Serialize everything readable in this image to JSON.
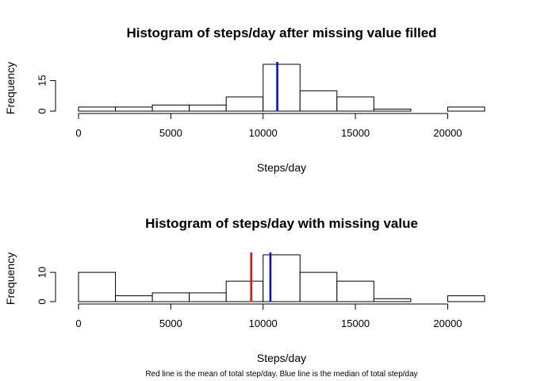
{
  "colors": {
    "bar_fill": "#ffffff",
    "bar_stroke": "#000000",
    "mean_line": "#ff0000",
    "median_line": "#0000ff"
  },
  "footnote": "Red line is the mean of total step/day. Blue line is the median of total step/day",
  "chart_data": [
    {
      "type": "bar",
      "title": "Histogram of steps/day after missing value filled",
      "xlabel": "Steps/day",
      "ylabel": "Frequency",
      "bin_edges": [
        0,
        2000,
        4000,
        6000,
        8000,
        10000,
        12000,
        14000,
        16000,
        18000,
        20000,
        22000
      ],
      "values": [
        2,
        2,
        3,
        3,
        7,
        23,
        10,
        7,
        1,
        0,
        2
      ],
      "xticks": [
        0,
        5000,
        10000,
        15000,
        20000
      ],
      "xtick_labels": [
        "0",
        "5000",
        "10000",
        "15000",
        "20000"
      ],
      "yticks": [
        0,
        15
      ],
      "ytick_labels": [
        "0",
        "15"
      ],
      "xlim": [
        0,
        22000
      ],
      "ylim": [
        0,
        23
      ],
      "vlines": [
        {
          "x": 10766,
          "color": "#0000ff"
        }
      ],
      "grid": false,
      "legend": "none"
    },
    {
      "type": "bar",
      "title": "Histogram of steps/day with missing value",
      "xlabel": "Steps/day",
      "ylabel": "Frequency",
      "bin_edges": [
        0,
        2000,
        4000,
        6000,
        8000,
        10000,
        12000,
        14000,
        16000,
        18000,
        20000,
        22000
      ],
      "values": [
        10,
        2,
        3,
        3,
        7,
        16,
        10,
        7,
        1,
        0,
        2
      ],
      "xticks": [
        0,
        5000,
        10000,
        15000,
        20000
      ],
      "xtick_labels": [
        "0",
        "5000",
        "10000",
        "15000",
        "20000"
      ],
      "yticks": [
        0,
        10
      ],
      "ytick_labels": [
        "0",
        "10"
      ],
      "xlim": [
        0,
        22000
      ],
      "ylim": [
        0,
        16
      ],
      "vlines": [
        {
          "x": 9354,
          "color": "#ff0000"
        },
        {
          "x": 10395,
          "color": "#0000ff"
        }
      ],
      "grid": false,
      "legend": "none"
    }
  ]
}
